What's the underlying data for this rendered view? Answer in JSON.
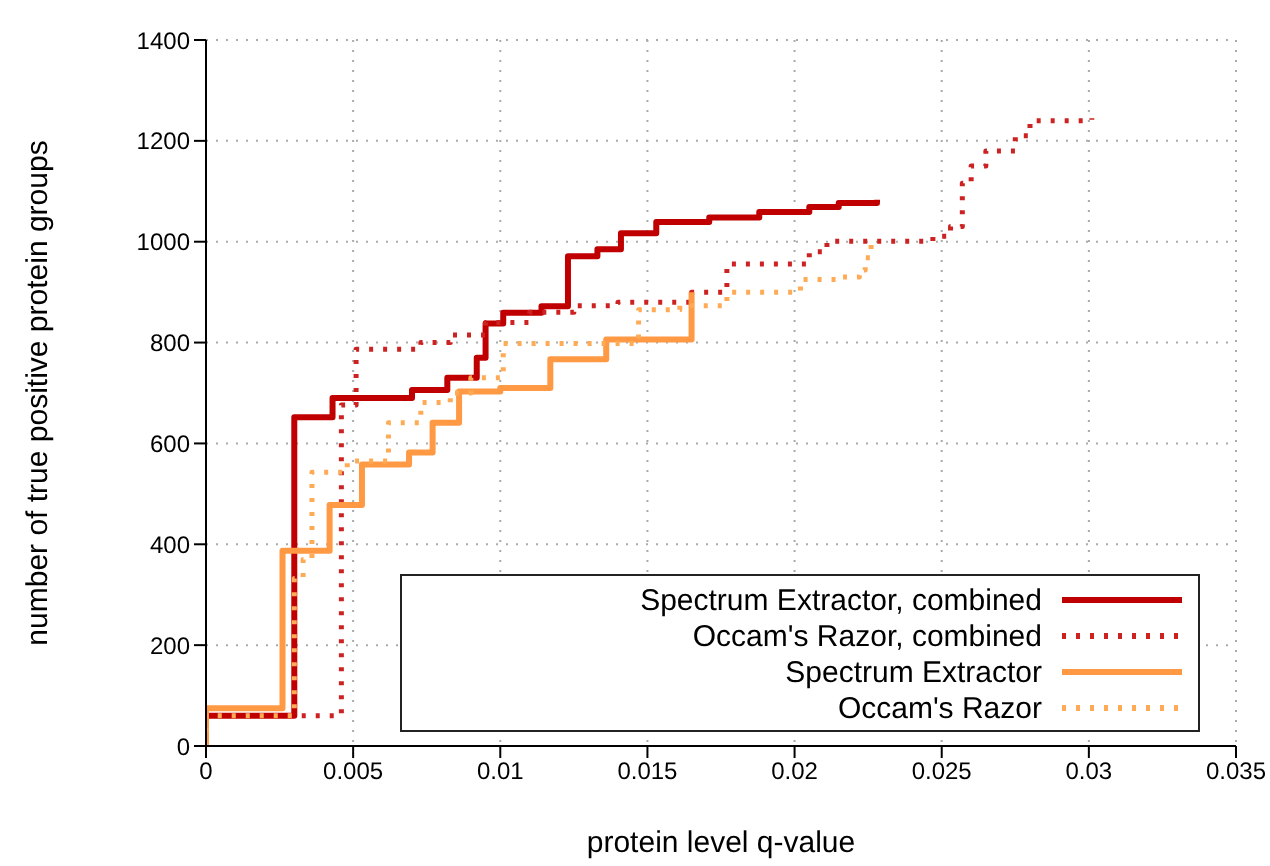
{
  "chart_data": {
    "type": "step",
    "xlabel": "protein level q-value",
    "ylabel": "number of true positive protein groups",
    "xlim": [
      0,
      0.035
    ],
    "xticks": [
      0,
      0.005,
      0.01,
      0.015,
      0.02,
      0.025,
      0.03,
      0.035
    ],
    "ylim": [
      0,
      1400
    ],
    "yticks": [
      0,
      200,
      400,
      600,
      800,
      1000,
      1200,
      1400
    ],
    "grid": true,
    "legend": "bottom right",
    "marker": "none",
    "series": [
      {
        "name": "Spectrum Extractor, combined",
        "color": "#c00000",
        "line_style": "solid",
        "x": [
          0,
          0,
          0.003,
          0.0043,
          0.007,
          0.0082,
          0.0092,
          0.0095,
          0.0101,
          0.0114,
          0.0123,
          0.0133,
          0.0141,
          0.0153,
          0.0171,
          0.0188,
          0.0205,
          0.0215,
          0.0228
        ],
        "values": [
          0,
          60,
          652,
          690,
          706,
          730,
          770,
          838,
          859,
          872,
          971,
          985,
          1017,
          1039,
          1048,
          1059,
          1069,
          1077,
          1083
        ]
      },
      {
        "name": "Occam's Razor, combined",
        "color": "#cc2222",
        "line_style": "dotted",
        "x": [
          0,
          0,
          0.0046,
          0.0051,
          0.0073,
          0.0083,
          0.0095,
          0.011,
          0.0125,
          0.014,
          0.0165,
          0.0177,
          0.0205,
          0.0211,
          0.0247,
          0.0253,
          0.0257,
          0.026,
          0.0265,
          0.0275,
          0.028,
          0.0301
        ],
        "values": [
          0,
          60,
          676,
          787,
          800,
          815,
          840,
          860,
          873,
          880,
          900,
          956,
          980,
          1001,
          1011,
          1030,
          1116,
          1150,
          1180,
          1210,
          1240,
          1245
        ]
      },
      {
        "name": "Spectrum Extractor",
        "color": "#ff9944",
        "line_style": "solid",
        "x": [
          0,
          0,
          0.0026,
          0.0042,
          0.0053,
          0.0069,
          0.0077,
          0.0086,
          0.01,
          0.0117,
          0.0136,
          0.0165
        ],
        "values": [
          0,
          75,
          387,
          478,
          558,
          582,
          641,
          703,
          710,
          767,
          806,
          900
        ]
      },
      {
        "name": "Occam's Razor",
        "color": "#ffaa55",
        "line_style": "dotted",
        "x": [
          0,
          0,
          0.003,
          0.0033,
          0.0036,
          0.0048,
          0.0062,
          0.0073,
          0.0083,
          0.009,
          0.0101,
          0.0147,
          0.0161,
          0.0177,
          0.0202,
          0.0215,
          0.0222,
          0.0224,
          0.0226
        ],
        "values": [
          0,
          60,
          332,
          370,
          543,
          565,
          641,
          681,
          700,
          730,
          798,
          865,
          873,
          900,
          925,
          930,
          944,
          968,
          997
        ]
      }
    ]
  }
}
